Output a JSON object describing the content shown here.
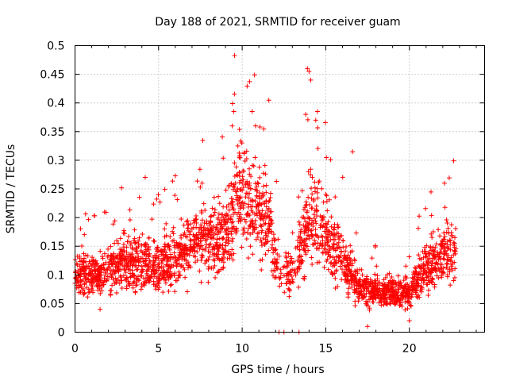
{
  "chart_data": {
    "type": "scatter",
    "title": "Day 188 of 2021, SRMTID for receiver guam",
    "xlabel": "GPS time / hours",
    "ylabel": "SRMTID / TECUs",
    "xlim": [
      0,
      24.5
    ],
    "ylim": [
      0,
      0.5
    ],
    "xticks": [
      "0",
      "5",
      "10",
      "15",
      "20"
    ],
    "yticks": [
      "0",
      "0.05",
      "0.1",
      "0.15",
      "0.2",
      "0.25",
      "0.3",
      "0.35",
      "0.4",
      "0.45",
      "0.5"
    ],
    "grid": true,
    "marker": "plus",
    "color": "#ff0000",
    "series_envelope": {
      "description": "approximate median level of SRMTID over time (hours, TECU)",
      "x": [
        0,
        1,
        2,
        3,
        4,
        5,
        6,
        7,
        8,
        9,
        9.5,
        10,
        10.5,
        11,
        11.5,
        12,
        12.5,
        13,
        13.5,
        14,
        14.5,
        15,
        15.5,
        16,
        16.5,
        17,
        18,
        19,
        20,
        21,
        22,
        22.8
      ],
      "y": [
        0.1,
        0.1,
        0.11,
        0.12,
        0.12,
        0.11,
        0.13,
        0.15,
        0.16,
        0.17,
        0.22,
        0.25,
        0.22,
        0.2,
        0.2,
        0.13,
        0.1,
        0.1,
        0.14,
        0.2,
        0.19,
        0.17,
        0.14,
        0.13,
        0.1,
        0.08,
        0.07,
        0.07,
        0.07,
        0.11,
        0.13,
        0.15
      ]
    },
    "notable_points": [
      {
        "x": 13.9,
        "y": 0.46
      },
      {
        "x": 14.0,
        "y": 0.455
      },
      {
        "x": 14.1,
        "y": 0.44
      },
      {
        "x": 14.5,
        "y": 0.385
      },
      {
        "x": 14.4,
        "y": 0.37
      },
      {
        "x": 13.8,
        "y": 0.38
      },
      {
        "x": 9.5,
        "y": 0.385
      },
      {
        "x": 9.4,
        "y": 0.36
      },
      {
        "x": 10.6,
        "y": 0.385
      },
      {
        "x": 10.8,
        "y": 0.36
      },
      {
        "x": 16.6,
        "y": 0.315
      },
      {
        "x": 4.2,
        "y": 0.27
      },
      {
        "x": 22.1,
        "y": 0.26
      },
      {
        "x": 7.6,
        "y": 0.26
      },
      {
        "x": 12.2,
        "y": 0.0
      },
      {
        "x": 12.5,
        "y": 0.0
      },
      {
        "x": 13.4,
        "y": 0.0
      },
      {
        "x": 17.5,
        "y": 0.01
      },
      {
        "x": 20.0,
        "y": 0.02
      },
      {
        "x": 1.5,
        "y": 0.04
      }
    ]
  }
}
